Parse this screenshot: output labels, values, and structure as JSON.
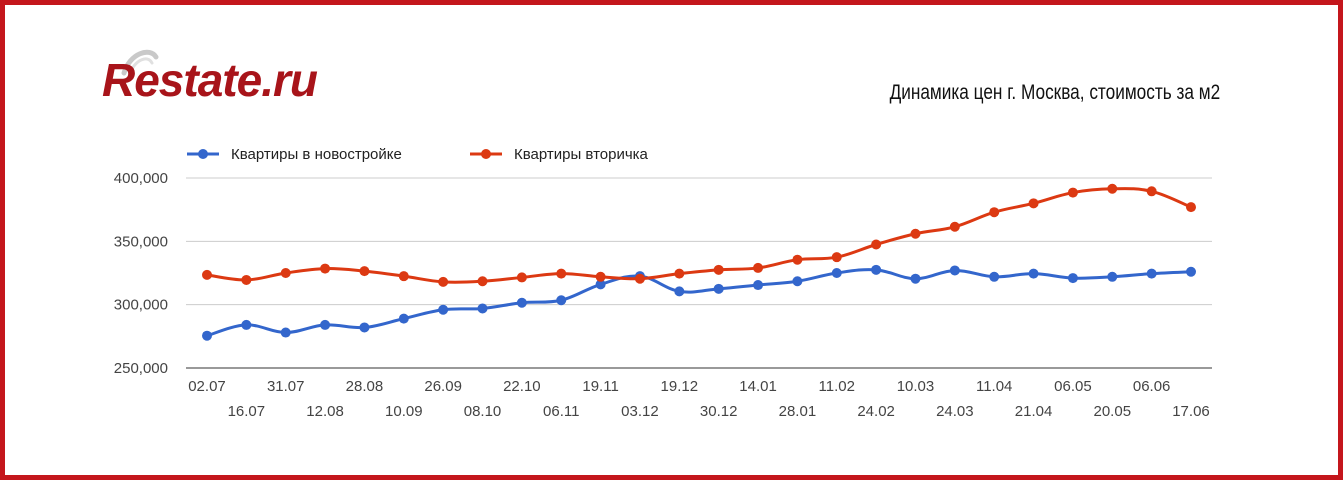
{
  "brand": {
    "logo_text": "Restate.ru"
  },
  "page_title": "Динамика цен г. Москва, стоимость за м2",
  "colors": {
    "frame": "#c4161c",
    "logo": "#a8141a",
    "series_new": "#3366cc",
    "series_secondary": "#dc3912",
    "grid": "#cccccc"
  },
  "chart_data": {
    "type": "line",
    "x": [
      "02.07",
      "16.07",
      "31.07",
      "12.08",
      "28.08",
      "10.09",
      "26.09",
      "08.10",
      "22.10",
      "06.11",
      "19.11",
      "03.12",
      "19.12",
      "30.12",
      "14.01",
      "28.01",
      "11.02",
      "24.02",
      "10.03",
      "24.03",
      "11.04",
      "21.04",
      "06.05",
      "20.05",
      "06.06",
      "17.06"
    ],
    "series": [
      {
        "name": "Квартиры в новостройке",
        "color": "#3366cc",
        "values": [
          275500,
          284000,
          278000,
          284000,
          282000,
          289000,
          296000,
          297000,
          301500,
          303500,
          316000,
          322500,
          310500,
          312500,
          315500,
          318500,
          325000,
          327500,
          320500,
          327000,
          322000,
          324500,
          321000,
          322000,
          324500,
          326000
        ]
      },
      {
        "name": "Квартиры вторичка",
        "color": "#dc3912",
        "values": [
          323500,
          319500,
          325000,
          328500,
          326500,
          322500,
          318000,
          318500,
          321500,
          324500,
          322000,
          320500,
          324500,
          327500,
          329000,
          335500,
          337500,
          347500,
          356000,
          361500,
          373000,
          380000,
          388500,
          391500,
          389500,
          377000
        ]
      }
    ],
    "y_ticks": [
      "250,000",
      "300,000",
      "350,000",
      "400,000"
    ],
    "y_tick_values": [
      250000,
      300000,
      350000,
      400000
    ],
    "ylim": [
      250000,
      400000
    ],
    "grid": true,
    "legend_position": "top-left"
  }
}
